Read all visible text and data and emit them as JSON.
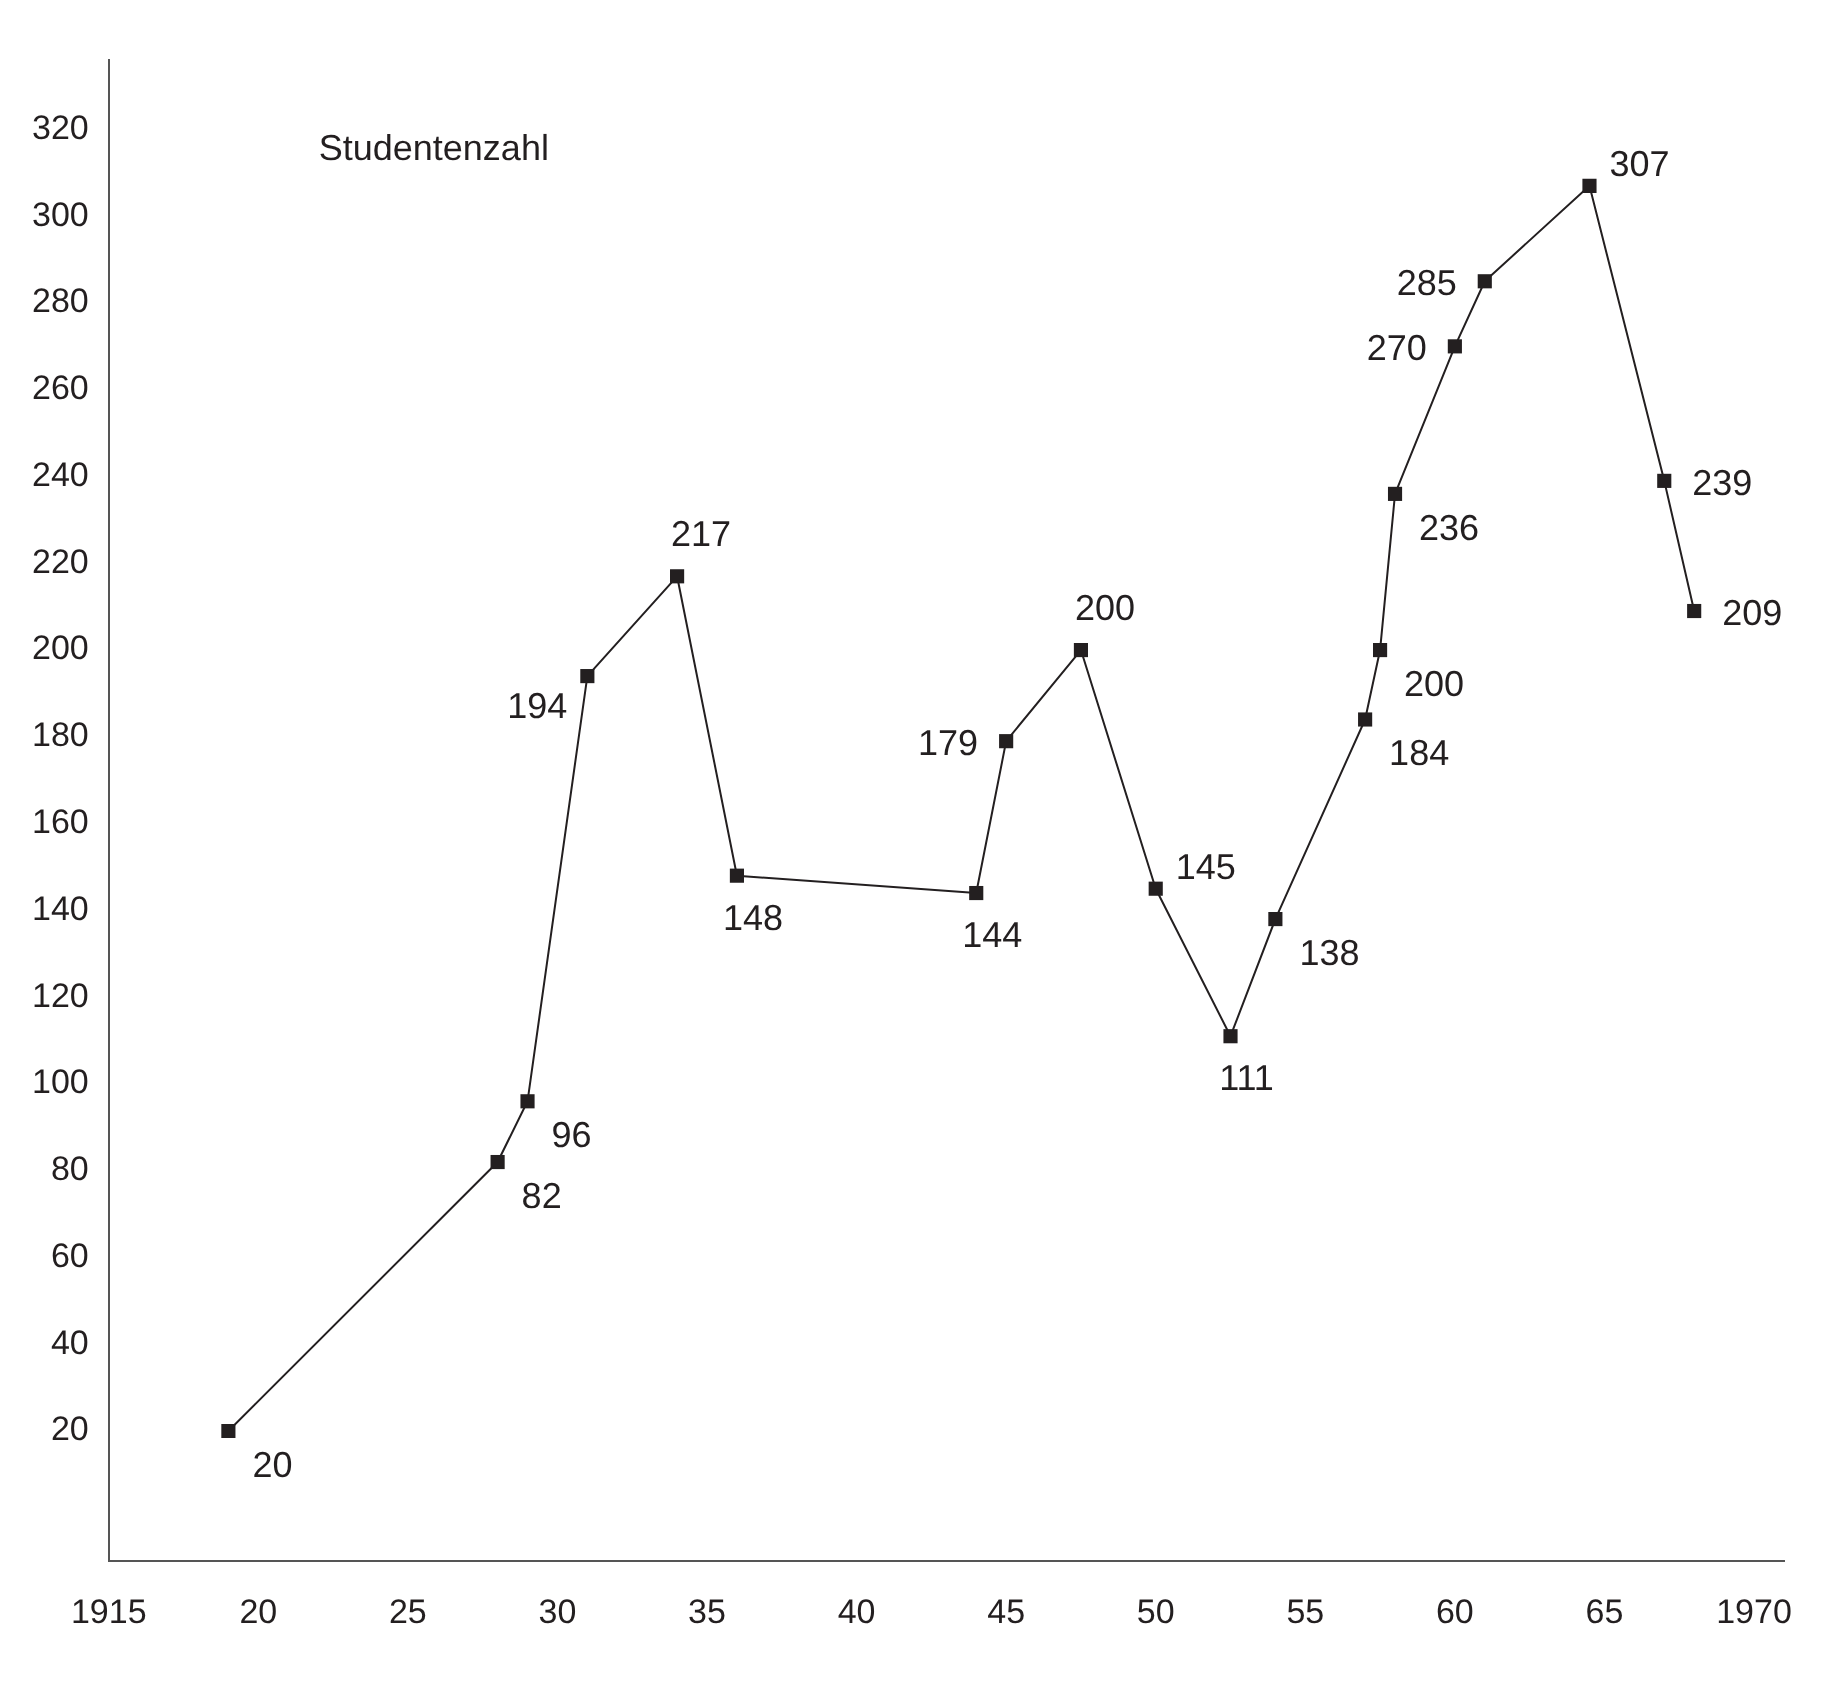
{
  "chart_data": {
    "type": "line",
    "title": "Studentenzahl",
    "x": [
      1919,
      1928,
      1929,
      1931,
      1934,
      1936,
      1944,
      1945,
      1947.5,
      1950,
      1952.5,
      1954,
      1957,
      1957.5,
      1958,
      1960,
      1961,
      1964.5,
      1967,
      1968
    ],
    "series": [
      {
        "color": "#231f20",
        "values": [
          20,
          82,
          96,
          194,
          217,
          148,
          144,
          179,
          200,
          145,
          111,
          138,
          184,
          200,
          236,
          270,
          285,
          307,
          239,
          209
        ]
      }
    ],
    "xlim": [
      1915,
      1971
    ],
    "xticks": [
      1915,
      {
        "value": 1920,
        "label": "20"
      },
      {
        "value": 1925,
        "label": "25"
      },
      {
        "value": 1930,
        "label": "30"
      },
      {
        "value": 1935,
        "label": "35"
      },
      {
        "value": 1940,
        "label": "40"
      },
      {
        "value": 1945,
        "label": "45"
      },
      {
        "value": 1950,
        "label": "50"
      },
      {
        "value": 1955,
        "label": "55"
      },
      {
        "value": 1960,
        "label": "60"
      },
      {
        "value": 1965,
        "label": "65"
      },
      1970
    ],
    "ylim": [
      -10,
      336
    ],
    "yticks": [
      20,
      40,
      60,
      80,
      100,
      120,
      140,
      160,
      180,
      200,
      220,
      240,
      260,
      280,
      300,
      320
    ],
    "grid": false,
    "legend": false,
    "marker": "square",
    "line_style": "solid",
    "data_labels": true
  }
}
